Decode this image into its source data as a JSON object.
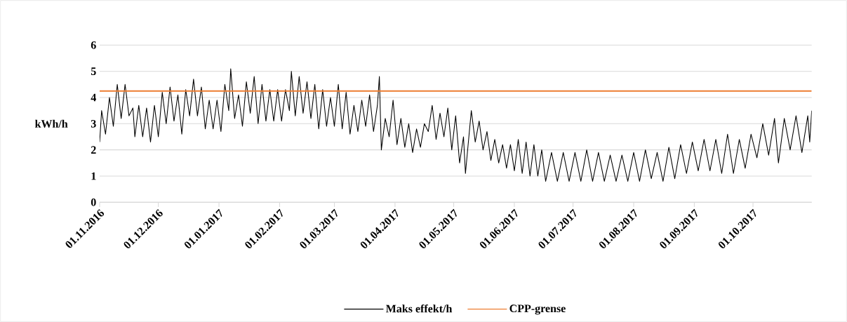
{
  "chart_data": {
    "type": "line",
    "ylabel": "kWh/h",
    "xlim": [
      "2016-11-01",
      "2017-10-31"
    ],
    "xticks": [
      {
        "value": "2016-11-01",
        "label": "01.11.2016"
      },
      {
        "value": "2016-12-01",
        "label": "01.12.2016"
      },
      {
        "value": "2017-01-01",
        "label": "01.01.2017"
      },
      {
        "value": "2017-02-01",
        "label": "01.02.2017"
      },
      {
        "value": "2017-03-01",
        "label": "01.03.2017"
      },
      {
        "value": "2017-04-01",
        "label": "01.04.2017"
      },
      {
        "value": "2017-05-01",
        "label": "01.05.2017"
      },
      {
        "value": "2017-06-01",
        "label": "01.06.2017"
      },
      {
        "value": "2017-07-01",
        "label": "01.07.2017"
      },
      {
        "value": "2017-08-01",
        "label": "01.08.2017"
      },
      {
        "value": "2017-09-01",
        "label": "01.09.2017"
      },
      {
        "value": "2017-10-01",
        "label": "01.10.2017"
      }
    ],
    "ylim": [
      0,
      6
    ],
    "yticks": [
      0,
      1,
      2,
      3,
      4,
      5,
      6
    ],
    "grid": "y",
    "legend": "bottom",
    "marker": "none",
    "line_style": "solid",
    "series": [
      {
        "name": "Maks effekt/h",
        "color": "#000000",
        "x": [
          "2016-11-01",
          "2016-11-02",
          "2016-11-04",
          "2016-11-06",
          "2016-11-08",
          "2016-11-10",
          "2016-11-12",
          "2016-11-14",
          "2016-11-16",
          "2016-11-18",
          "2016-11-19",
          "2016-11-21",
          "2016-11-23",
          "2016-11-25",
          "2016-11-27",
          "2016-11-29",
          "2016-12-01",
          "2016-12-03",
          "2016-12-05",
          "2016-12-07",
          "2016-12-09",
          "2016-12-11",
          "2016-12-13",
          "2016-12-15",
          "2016-12-17",
          "2016-12-19",
          "2016-12-21",
          "2016-12-23",
          "2016-12-25",
          "2016-12-27",
          "2016-12-29",
          "2016-12-31",
          "2017-01-02",
          "2017-01-04",
          "2017-01-06",
          "2017-01-07",
          "2017-01-09",
          "2017-01-11",
          "2017-01-13",
          "2017-01-15",
          "2017-01-17",
          "2017-01-19",
          "2017-01-21",
          "2017-01-23",
          "2017-01-25",
          "2017-01-27",
          "2017-01-29",
          "2017-01-31",
          "2017-02-02",
          "2017-02-04",
          "2017-02-06",
          "2017-02-07",
          "2017-02-09",
          "2017-02-11",
          "2017-02-13",
          "2017-02-15",
          "2017-02-17",
          "2017-02-19",
          "2017-02-21",
          "2017-02-23",
          "2017-02-25",
          "2017-02-27",
          "2017-03-01",
          "2017-03-03",
          "2017-03-05",
          "2017-03-07",
          "2017-03-09",
          "2017-03-11",
          "2017-03-13",
          "2017-03-15",
          "2017-03-17",
          "2017-03-19",
          "2017-03-21",
          "2017-03-23",
          "2017-03-24",
          "2017-03-25",
          "2017-03-27",
          "2017-03-29",
          "2017-03-31",
          "2017-04-02",
          "2017-04-04",
          "2017-04-06",
          "2017-04-08",
          "2017-04-10",
          "2017-04-12",
          "2017-04-14",
          "2017-04-16",
          "2017-04-18",
          "2017-04-20",
          "2017-04-22",
          "2017-04-24",
          "2017-04-26",
          "2017-04-28",
          "2017-04-30",
          "2017-05-02",
          "2017-05-04",
          "2017-05-06",
          "2017-05-07",
          "2017-05-09",
          "2017-05-10",
          "2017-05-12",
          "2017-05-14",
          "2017-05-16",
          "2017-05-18",
          "2017-05-20",
          "2017-05-22",
          "2017-05-24",
          "2017-05-26",
          "2017-05-28",
          "2017-05-30",
          "2017-06-01",
          "2017-06-03",
          "2017-06-05",
          "2017-06-07",
          "2017-06-09",
          "2017-06-11",
          "2017-06-13",
          "2017-06-15",
          "2017-06-17",
          "2017-06-20",
          "2017-06-23",
          "2017-06-26",
          "2017-06-29",
          "2017-07-02",
          "2017-07-05",
          "2017-07-08",
          "2017-07-11",
          "2017-07-14",
          "2017-07-17",
          "2017-07-20",
          "2017-07-23",
          "2017-07-26",
          "2017-07-29",
          "2017-08-01",
          "2017-08-04",
          "2017-08-07",
          "2017-08-10",
          "2017-08-13",
          "2017-08-16",
          "2017-08-19",
          "2017-08-22",
          "2017-08-25",
          "2017-08-28",
          "2017-08-31",
          "2017-09-03",
          "2017-09-06",
          "2017-09-09",
          "2017-09-12",
          "2017-09-15",
          "2017-09-18",
          "2017-09-21",
          "2017-09-24",
          "2017-09-27",
          "2017-09-30",
          "2017-10-03",
          "2017-10-06",
          "2017-10-09",
          "2017-10-12",
          "2017-10-14",
          "2017-10-17",
          "2017-10-20",
          "2017-10-23",
          "2017-10-26",
          "2017-10-29",
          "2017-10-30",
          "2017-10-31"
        ],
        "values": [
          2.3,
          3.5,
          2.6,
          4.0,
          2.9,
          4.5,
          3.2,
          4.5,
          3.3,
          3.6,
          2.5,
          3.7,
          2.5,
          3.6,
          2.3,
          3.7,
          2.5,
          4.2,
          3.0,
          4.4,
          3.1,
          4.1,
          2.6,
          4.3,
          3.3,
          4.7,
          3.3,
          4.4,
          2.8,
          3.9,
          2.8,
          3.9,
          2.7,
          4.5,
          3.5,
          5.1,
          3.2,
          4.1,
          2.9,
          4.6,
          3.4,
          4.8,
          3.0,
          4.5,
          3.1,
          4.3,
          3.1,
          4.3,
          3.1,
          4.3,
          3.5,
          5.0,
          3.3,
          4.8,
          3.4,
          4.6,
          3.2,
          4.5,
          2.8,
          4.3,
          2.9,
          4.0,
          2.9,
          4.5,
          2.8,
          4.2,
          2.6,
          3.7,
          2.7,
          3.9,
          2.9,
          4.1,
          2.7,
          3.7,
          4.8,
          2.0,
          3.2,
          2.5,
          3.9,
          2.2,
          3.2,
          2.1,
          3.0,
          1.9,
          2.8,
          2.1,
          3.0,
          2.7,
          3.7,
          2.4,
          3.4,
          2.5,
          3.6,
          2.0,
          3.3,
          1.5,
          2.5,
          1.1,
          2.7,
          3.5,
          2.3,
          3.1,
          2.0,
          2.7,
          1.6,
          2.4,
          1.5,
          2.2,
          1.3,
          2.2,
          1.2,
          2.4,
          1.1,
          2.3,
          1.0,
          2.2,
          1.0,
          2.0,
          0.8,
          1.9,
          0.8,
          1.9,
          0.8,
          1.9,
          0.8,
          2.0,
          0.8,
          1.9,
          0.8,
          1.8,
          0.8,
          1.8,
          0.8,
          1.9,
          0.8,
          2.0,
          0.9,
          1.9,
          0.8,
          2.1,
          0.9,
          2.2,
          1.1,
          2.3,
          1.2,
          2.4,
          1.2,
          2.4,
          1.1,
          2.6,
          1.1,
          2.4,
          1.3,
          2.6,
          1.7,
          3.0,
          1.8,
          3.2,
          1.5,
          3.2,
          2.0,
          3.3,
          1.9,
          3.3,
          2.3,
          3.5
        ]
      },
      {
        "name": "CPP-grense",
        "color": "#ed7d31",
        "x": [
          "2016-11-01",
          "2017-10-31"
        ],
        "values": [
          4.25,
          4.25
        ]
      }
    ]
  }
}
